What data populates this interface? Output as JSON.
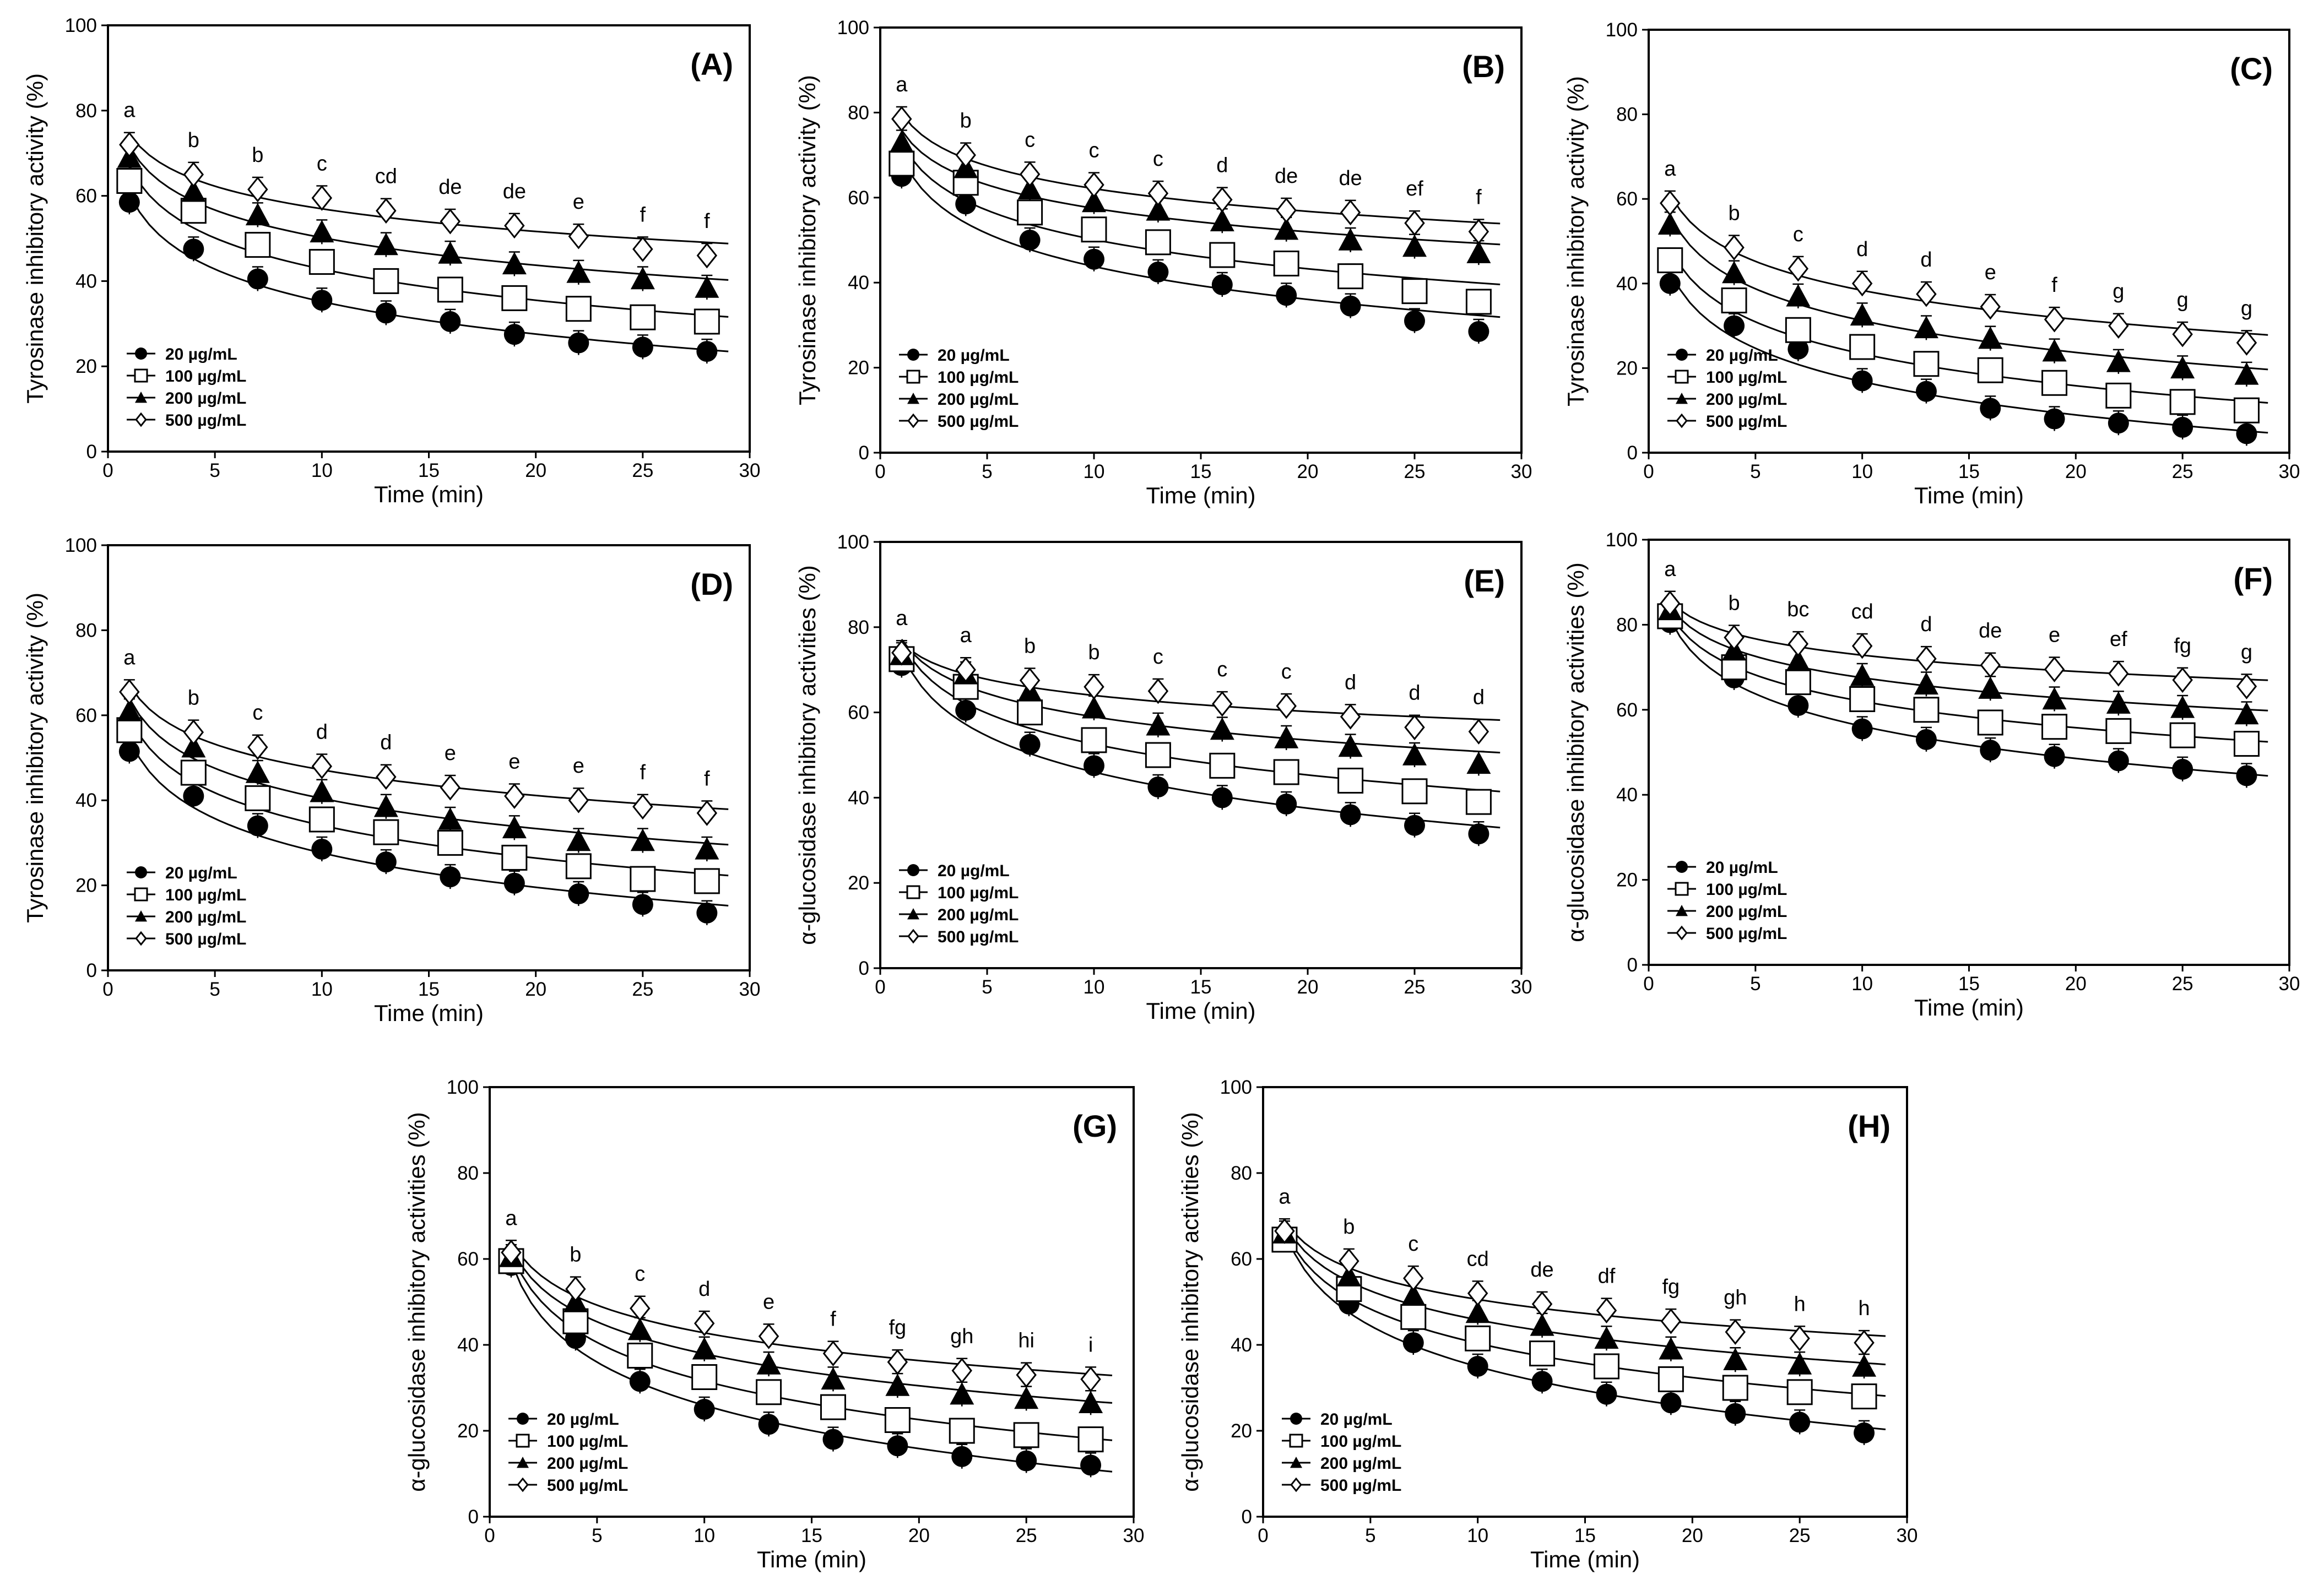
{
  "chart_data": [
    {
      "type": "scatter",
      "panel": "(A)",
      "xlabel": "Time (min)",
      "ylabel": "Tyrosinase inhibitory activity (%)",
      "xlim": [
        0,
        30
      ],
      "ylim": [
        0,
        100
      ],
      "xticks": [
        0,
        5,
        10,
        15,
        20,
        25,
        30
      ],
      "yticks": [
        0,
        20,
        40,
        60,
        80,
        100
      ],
      "x": [
        1,
        4,
        7,
        10,
        13,
        16,
        19,
        22,
        25,
        28
      ],
      "letters": [
        "a",
        "b",
        "b",
        "c",
        "cd",
        "de",
        "de",
        "e",
        "f",
        "f"
      ],
      "legend": "bottom-left",
      "series": [
        {
          "name": "20 µg/mL",
          "values": [
            58.5,
            47.5,
            40.5,
            35.5,
            32.5,
            30.5,
            27.5,
            25.5,
            24.5,
            23.5
          ]
        },
        {
          "name": "100 µg/mL",
          "values": [
            63.5,
            56.5,
            48.5,
            44.5,
            40,
            38,
            36,
            33.5,
            31.5,
            30.5
          ]
        },
        {
          "name": "200 µg/mL",
          "values": [
            69,
            61,
            55.5,
            51.5,
            48.5,
            46.5,
            44,
            42,
            40.5,
            38.5
          ]
        },
        {
          "name": "500 µg/mL",
          "values": [
            72,
            65,
            61.5,
            59.5,
            56.5,
            54,
            53,
            50.5,
            47.5,
            46
          ]
        }
      ]
    },
    {
      "type": "scatter",
      "panel": "(B)",
      "xlabel": "Time (min)",
      "ylabel": "Tyrosinase inhibitory activity (%)",
      "xlim": [
        0,
        30
      ],
      "ylim": [
        0,
        100
      ],
      "xticks": [
        0,
        5,
        10,
        15,
        20,
        25,
        30
      ],
      "yticks": [
        0,
        20,
        40,
        60,
        80,
        100
      ],
      "x": [
        1,
        4,
        7,
        10,
        13,
        16,
        19,
        22,
        25,
        28
      ],
      "letters": [
        "a",
        "b",
        "c",
        "c",
        "c",
        "d",
        "de",
        "de",
        "ef",
        "f"
      ],
      "legend": "bottom-left",
      "series": [
        {
          "name": "20 µg/mL",
          "values": [
            65,
            58.5,
            50,
            45.5,
            42.5,
            39.5,
            37,
            34.5,
            31,
            28.5
          ]
        },
        {
          "name": "100 µg/mL",
          "values": [
            68,
            63.5,
            56.5,
            52.5,
            49.5,
            46.5,
            44.5,
            41.5,
            38,
            35.5
          ]
        },
        {
          "name": "200 µg/mL",
          "values": [
            73,
            67,
            62,
            59,
            57,
            54.5,
            52.5,
            50,
            48.5,
            47
          ]
        },
        {
          "name": "500 µg/mL",
          "values": [
            78.5,
            70,
            65.5,
            63,
            61,
            59.5,
            57,
            56.5,
            54,
            52
          ]
        }
      ]
    },
    {
      "type": "scatter",
      "panel": "(C)",
      "xlabel": "Time (min)",
      "ylabel": "Tyrosinase inhibitory activity (%)",
      "xlim": [
        0,
        30
      ],
      "ylim": [
        0,
        100
      ],
      "xticks": [
        0,
        5,
        10,
        15,
        20,
        25,
        30
      ],
      "yticks": [
        0,
        20,
        40,
        60,
        80,
        100
      ],
      "x": [
        1,
        4,
        7,
        10,
        13,
        16,
        19,
        22,
        25,
        28
      ],
      "letters": [
        "a",
        "b",
        "c",
        "d",
        "d",
        "e",
        "f",
        "g",
        "g",
        "g"
      ],
      "legend": "bottom-left",
      "series": [
        {
          "name": "20 µg/mL",
          "values": [
            40,
            30,
            24.5,
            17,
            14.5,
            10.5,
            8,
            7,
            6,
            4.5
          ]
        },
        {
          "name": "100 µg/mL",
          "values": [
            45.5,
            36,
            29,
            25,
            21,
            19.5,
            16.5,
            13.5,
            12,
            10
          ]
        },
        {
          "name": "200 µg/mL",
          "values": [
            54,
            42.5,
            37,
            32.5,
            29.5,
            27,
            24,
            21.5,
            20,
            18.5
          ]
        },
        {
          "name": "500 µg/mL",
          "values": [
            59,
            48.5,
            43.5,
            40,
            37.5,
            34.5,
            31.5,
            30,
            28,
            26
          ]
        }
      ]
    },
    {
      "type": "scatter",
      "panel": "(D)",
      "xlabel": "Time (min)",
      "ylabel": "Tyrosinase inhibitory activity (%)",
      "xlim": [
        0,
        30
      ],
      "ylim": [
        0,
        100
      ],
      "xticks": [
        0,
        5,
        10,
        15,
        20,
        25,
        30
      ],
      "yticks": [
        0,
        20,
        40,
        60,
        80,
        100
      ],
      "x": [
        1,
        4,
        7,
        10,
        13,
        16,
        19,
        22,
        25,
        28
      ],
      "letters": [
        "a",
        "b",
        "c",
        "d",
        "d",
        "e",
        "e",
        "e",
        "f",
        "f"
      ],
      "legend": "bottom-left",
      "series": [
        {
          "name": "20 µg/mL",
          "values": [
            51.5,
            41,
            34,
            28.5,
            25.5,
            22,
            20.5,
            18,
            15.5,
            13.5
          ]
        },
        {
          "name": "100 µg/mL",
          "values": [
            56.5,
            46.5,
            40.5,
            35.5,
            32.5,
            30,
            26.5,
            24.5,
            21.5,
            21
          ]
        },
        {
          "name": "200 µg/mL",
          "values": [
            61,
            52.5,
            46.5,
            42,
            38.5,
            35.5,
            33.5,
            30.5,
            30.5,
            28.5
          ]
        },
        {
          "name": "500 µg/mL",
          "values": [
            65.5,
            56,
            52.5,
            48,
            45.5,
            43,
            41,
            40,
            38.5,
            37
          ]
        }
      ]
    },
    {
      "type": "scatter",
      "panel": "(E)",
      "xlabel": "Time (min)",
      "ylabel": "α-glucosidase inhibitory activities (%)",
      "xlim": [
        0,
        30
      ],
      "ylim": [
        0,
        100
      ],
      "xticks": [
        0,
        5,
        10,
        15,
        20,
        25,
        30
      ],
      "yticks": [
        0,
        20,
        40,
        60,
        80,
        100
      ],
      "x": [
        1,
        4,
        7,
        10,
        13,
        16,
        19,
        22,
        25,
        28
      ],
      "letters": [
        "a",
        "a",
        "b",
        "b",
        "c",
        "c",
        "c",
        "d",
        "d",
        "d"
      ],
      "legend": "bottom-left",
      "series": [
        {
          "name": "20 µg/mL",
          "values": [
            71,
            60.5,
            52.5,
            47.5,
            42.5,
            40,
            38.5,
            36,
            33.5,
            31.5
          ]
        },
        {
          "name": "100 µg/mL",
          "values": [
            72.5,
            66,
            60,
            53.5,
            50,
            47.5,
            46,
            44,
            41.5,
            39
          ]
        },
        {
          "name": "200 µg/mL",
          "values": [
            73.5,
            69,
            65,
            61,
            57,
            56,
            54,
            52,
            50,
            48
          ]
        },
        {
          "name": "500 µg/mL",
          "values": [
            74,
            70,
            67.5,
            66,
            65,
            62,
            61.5,
            59,
            56.5,
            55.5
          ]
        }
      ]
    },
    {
      "type": "scatter",
      "panel": "(F)",
      "xlabel": "Time (min)",
      "ylabel": "α-glucosidase inhibitory activities (%)",
      "xlim": [
        0,
        30
      ],
      "ylim": [
        0,
        100
      ],
      "xticks": [
        0,
        5,
        10,
        15,
        20,
        25,
        30
      ],
      "yticks": [
        0,
        20,
        40,
        60,
        80,
        100
      ],
      "x": [
        1,
        4,
        7,
        10,
        13,
        16,
        19,
        22,
        25,
        28
      ],
      "letters": [
        "a",
        "b",
        "bc",
        "cd",
        "d",
        "de",
        "e",
        "ef",
        "fg",
        "g"
      ],
      "legend": "bottom-left",
      "series": [
        {
          "name": "20 µg/mL",
          "values": [
            80.5,
            67.5,
            61,
            55.5,
            53,
            50.5,
            49,
            48,
            46,
            44.5
          ]
        },
        {
          "name": "100 µg/mL",
          "values": [
            82,
            70,
            66.5,
            62.5,
            60,
            57,
            56,
            55,
            54,
            52
          ]
        },
        {
          "name": "200 µg/mL",
          "values": [
            83.5,
            74,
            71.5,
            68,
            66,
            65,
            62.5,
            61.5,
            60.5,
            59
          ]
        },
        {
          "name": "500 µg/mL",
          "values": [
            85,
            77,
            75.5,
            75,
            72,
            70.5,
            69.5,
            68.5,
            67,
            65.5
          ]
        }
      ]
    },
    {
      "type": "scatter",
      "panel": "(G)",
      "xlabel": "Time (min)",
      "ylabel": "α-glucosidase inhibitory activities (%)",
      "xlim": [
        0,
        30
      ],
      "ylim": [
        0,
        100
      ],
      "xticks": [
        0,
        5,
        10,
        15,
        20,
        25,
        30
      ],
      "yticks": [
        0,
        20,
        40,
        60,
        80,
        100
      ],
      "x": [
        1,
        4,
        7,
        10,
        13,
        16,
        19,
        22,
        25,
        28
      ],
      "letters": [
        "a",
        "b",
        "c",
        "d",
        "e",
        "f",
        "fg",
        "gh",
        "hi",
        "i"
      ],
      "legend": "bottom-left",
      "series": [
        {
          "name": "20 µg/mL",
          "values": [
            58.5,
            41.5,
            31.5,
            25,
            21.5,
            18,
            16.5,
            14,
            13,
            12
          ]
        },
        {
          "name": "100 µg/mL",
          "values": [
            59.5,
            45.5,
            37.5,
            32.5,
            29,
            25.5,
            22.5,
            20,
            19,
            18
          ]
        },
        {
          "name": "200 µg/mL",
          "values": [
            60.5,
            50,
            43.5,
            39,
            35.5,
            32,
            30.5,
            28.5,
            27.5,
            26.5
          ]
        },
        {
          "name": "500 µg/mL",
          "values": [
            61.5,
            53,
            48.5,
            45,
            42,
            38,
            36,
            34,
            33,
            32
          ]
        }
      ]
    },
    {
      "type": "scatter",
      "panel": "(H)",
      "xlabel": "Time (min)",
      "ylabel": "α-glucosidase inhibitory activities (%)",
      "xlim": [
        0,
        30
      ],
      "ylim": [
        0,
        100
      ],
      "xticks": [
        0,
        5,
        10,
        15,
        20,
        25,
        30
      ],
      "yticks": [
        0,
        20,
        40,
        60,
        80,
        100
      ],
      "x": [
        1,
        4,
        7,
        10,
        13,
        16,
        19,
        22,
        25,
        28
      ],
      "letters": [
        "a",
        "b",
        "c",
        "cd",
        "de",
        "df",
        "fg",
        "gh",
        "h",
        "h"
      ],
      "legend": "bottom-left",
      "series": [
        {
          "name": "20 µg/mL",
          "values": [
            65,
            49.5,
            40.5,
            35,
            31.5,
            28.5,
            26.5,
            24,
            22,
            19.5
          ]
        },
        {
          "name": "100 µg/mL",
          "values": [
            64.5,
            53,
            46.5,
            41.5,
            38,
            35,
            32,
            30,
            29,
            28
          ]
        },
        {
          "name": "200 µg/mL",
          "values": [
            66,
            56,
            51.5,
            47.5,
            44.5,
            41.5,
            39,
            36.5,
            35.5,
            35
          ]
        },
        {
          "name": "500 µg/mL",
          "values": [
            66.5,
            59.5,
            55.5,
            52,
            49.5,
            48,
            45.5,
            43,
            41.5,
            40.5
          ]
        }
      ]
    }
  ]
}
